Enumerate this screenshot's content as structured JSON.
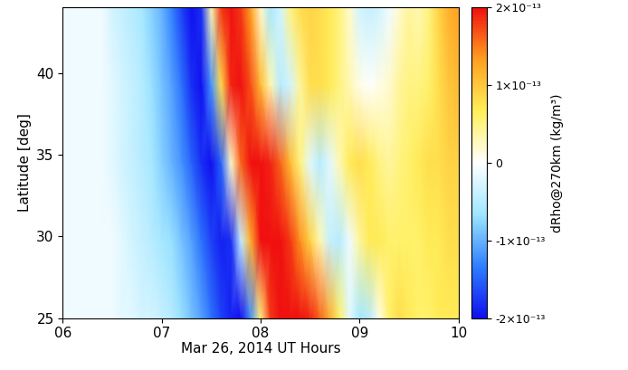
{
  "chart_data": {
    "type": "heatmap",
    "xlabel": "Mar 26, 2014 UT Hours",
    "ylabel": "Latitude [deg]",
    "colorbar_label": "dRho@270km (kg/m³)",
    "xlim": [
      6,
      10
    ],
    "xticks": [
      {
        "value": 6,
        "label": "06"
      },
      {
        "value": 7,
        "label": "07"
      },
      {
        "value": 8,
        "label": "08"
      },
      {
        "value": 9,
        "label": "09"
      },
      {
        "value": 10,
        "label": "10"
      }
    ],
    "ylim": [
      25,
      44
    ],
    "yticks": [
      25,
      30,
      35,
      40
    ],
    "colorbar_range": [
      -2e-13,
      2e-13
    ],
    "colorbar_ticks": [
      {
        "value": -2e-13,
        "label": "-2×10⁻¹³"
      },
      {
        "value": -1e-13,
        "label": "-1×10⁻¹³"
      },
      {
        "value": 0,
        "label": "0"
      },
      {
        "value": 1e-13,
        "label": "1×10⁻¹³"
      },
      {
        "value": 2e-13,
        "label": "2×10⁻¹³"
      }
    ],
    "x": [
      6.0,
      6.1,
      6.2,
      6.3,
      6.4,
      6.5,
      6.6,
      6.7,
      6.8,
      6.9,
      7.0,
      7.1,
      7.2,
      7.3,
      7.4,
      7.5,
      7.6,
      7.7,
      7.8,
      7.9,
      8.0,
      8.1,
      8.2,
      8.3,
      8.4,
      8.5,
      8.6,
      8.7,
      8.8,
      8.9,
      9.0,
      9.1,
      9.2,
      9.3,
      9.4,
      9.5,
      9.6,
      9.7,
      9.8,
      9.9,
      10.0
    ],
    "y": [
      25,
      29.75,
      34.5,
      39.25,
      44
    ],
    "cells": [
      [
        -1e-14,
        -1e-14,
        -1e-14,
        -1e-14,
        -1e-14,
        -1e-14,
        -2e-14,
        -2e-14,
        -3e-14,
        -3e-14,
        -4e-14,
        -5e-14,
        -7e-14,
        -9e-14,
        -1.1e-13,
        -1.4e-13,
        -1.7e-13,
        -1.9e-13,
        -2e-13,
        -1.2e-13,
        5e-14,
        1.8e-13,
        2e-13,
        2e-13,
        2e-13,
        1.9e-13,
        1.6e-13,
        1.2e-13,
        6e-14,
        -2e-14,
        -6e-14,
        -5e-14,
        1e-14,
        6e-14,
        8e-14,
        7e-14,
        6e-14,
        6e-14,
        7e-14,
        7e-14,
        7e-14
      ],
      [
        -1e-14,
        -1e-14,
        -1e-14,
        -1e-14,
        -1e-14,
        -1e-14,
        -2e-14,
        -3e-14,
        -4e-14,
        -5e-14,
        -6e-14,
        -7e-14,
        -9e-14,
        -1.1e-13,
        -1.4e-13,
        -1.7e-13,
        -1.9e-13,
        -1.8e-13,
        -4e-14,
        1.2e-13,
        2e-13,
        2e-13,
        2e-13,
        1.8e-13,
        1.4e-13,
        9e-14,
        3e-14,
        -4e-14,
        -5e-14,
        -1e-14,
        4e-14,
        7e-14,
        7e-14,
        6e-14,
        6e-14,
        6e-14,
        6e-14,
        7e-14,
        7e-14,
        8e-14,
        8e-14
      ],
      [
        -1e-14,
        -1e-14,
        -1e-14,
        -1e-14,
        -1e-14,
        -2e-14,
        -3e-14,
        -4e-14,
        -5e-14,
        -6e-14,
        -8e-14,
        -1e-13,
        -1.2e-13,
        -1.5e-13,
        -1.8e-13,
        -2e-13,
        -1.5e-13,
        2e-14,
        1.6e-13,
        2e-13,
        2e-13,
        1.9e-13,
        1.6e-13,
        1.1e-13,
        5e-14,
        -2e-14,
        -5e-14,
        -2e-14,
        3e-14,
        7e-14,
        8e-14,
        7e-14,
        5e-14,
        4e-14,
        5e-14,
        6e-14,
        7e-14,
        8e-14,
        8e-14,
        9e-14,
        9e-14
      ],
      [
        -1e-14,
        -1e-14,
        -1e-14,
        -1e-14,
        -1e-14,
        -2e-14,
        -3e-14,
        -4e-14,
        -5e-14,
        -7e-14,
        -9e-14,
        -1.1e-13,
        -1.4e-13,
        -1.8e-13,
        -2e-13,
        -1.2e-13,
        8e-14,
        1.9e-13,
        2e-13,
        1.7e-13,
        1.1e-13,
        3e-14,
        -5e-14,
        -3e-14,
        4e-14,
        8e-14,
        8e-14,
        7e-14,
        5e-14,
        3e-14,
        1e-14,
        0.0,
        1e-14,
        2e-14,
        4e-14,
        5e-14,
        5e-14,
        6e-14,
        8e-14,
        1e-13,
        1.1e-13
      ],
      [
        -1e-14,
        -1e-14,
        -1e-14,
        -1e-14,
        -1e-14,
        -3e-14,
        -4e-14,
        -5e-14,
        -6e-14,
        -8e-14,
        -1e-13,
        -1.3e-13,
        -1.7e-13,
        -2e-13,
        -1.8e-13,
        3e-14,
        1.8e-13,
        2e-13,
        1.8e-13,
        1.3e-13,
        2e-14,
        -6e-14,
        -3e-14,
        5e-14,
        8e-14,
        9e-14,
        8e-14,
        7e-14,
        5e-14,
        2e-14,
        -3e-14,
        -4e-14,
        -3e-14,
        -1e-14,
        2e-14,
        4e-14,
        3e-14,
        5e-14,
        9e-14,
        1.2e-13,
        1.3e-13
      ]
    ]
  }
}
